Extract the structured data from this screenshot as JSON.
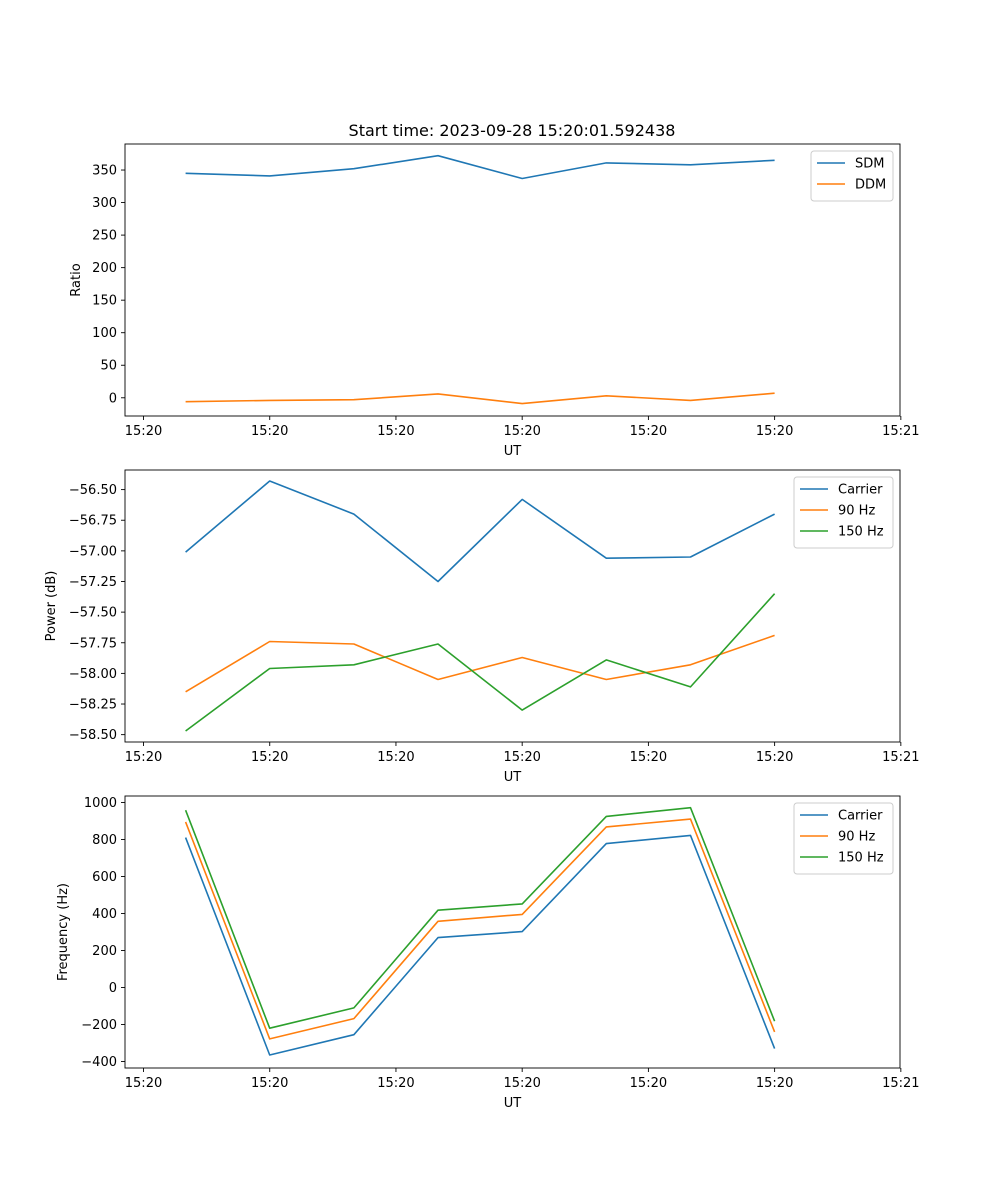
{
  "figure": {
    "title": "Start time: 2023-09-28 15:20:01.592438"
  },
  "colors": {
    "blue": "#1f77b4",
    "orange": "#ff7f0e",
    "green": "#2ca02c",
    "axes": "#000000",
    "legend_border": "#cccccc"
  },
  "chart_data": [
    {
      "type": "line",
      "title": "Start time: 2023-09-28 15:20:01.592438",
      "xlabel": "UT",
      "ylabel": "Ratio",
      "x": [
        1,
        2,
        3,
        4,
        5,
        6,
        7,
        8
      ],
      "xlim": [
        0.28,
        9.49
      ],
      "x_ticks": [
        0.5,
        2.0,
        3.5,
        5.0,
        6.5,
        8.0,
        9.5
      ],
      "x_tick_labels": [
        "15:20",
        "15:20",
        "15:20",
        "15:20",
        "15:20",
        "15:20",
        "15:21"
      ],
      "ylim": [
        -28,
        390
      ],
      "y_ticks": [
        0,
        50,
        100,
        150,
        200,
        250,
        300,
        350
      ],
      "y_tick_labels": [
        "0",
        "50",
        "100",
        "150",
        "200",
        "250",
        "300",
        "350"
      ],
      "legend_position": "top-right",
      "series": [
        {
          "name": "SDM",
          "color": "#1f77b4",
          "values": [
            345,
            341,
            352,
            372,
            337,
            361,
            358,
            365
          ]
        },
        {
          "name": "DDM",
          "color": "#ff7f0e",
          "values": [
            -6,
            -4,
            -3,
            6,
            -9,
            3,
            -4,
            7
          ]
        }
      ]
    },
    {
      "type": "line",
      "title": "",
      "xlabel": "UT",
      "ylabel": "Power (dB)",
      "x": [
        1,
        2,
        3,
        4,
        5,
        6,
        7,
        8
      ],
      "xlim": [
        0.28,
        9.49
      ],
      "x_ticks": [
        0.5,
        2.0,
        3.5,
        5.0,
        6.5,
        8.0,
        9.5
      ],
      "x_tick_labels": [
        "15:20",
        "15:20",
        "15:20",
        "15:20",
        "15:20",
        "15:20",
        "15:21"
      ],
      "ylim": [
        -58.56,
        -56.34
      ],
      "y_ticks": [
        -58.5,
        -58.25,
        -58.0,
        -57.75,
        -57.5,
        -57.25,
        -57.0,
        -56.75,
        -56.5
      ],
      "y_tick_labels": [
        "−58.50",
        "−58.25",
        "−58.00",
        "−57.75",
        "−57.50",
        "−57.25",
        "−57.00",
        "−56.75",
        "−56.50"
      ],
      "legend_position": "top-right",
      "series": [
        {
          "name": "Carrier",
          "color": "#1f77b4",
          "values": [
            -57.01,
            -56.43,
            -56.7,
            -57.25,
            -56.58,
            -57.06,
            -57.05,
            -56.7
          ]
        },
        {
          "name": "90 Hz",
          "color": "#ff7f0e",
          "values": [
            -58.15,
            -57.74,
            -57.76,
            -58.05,
            -57.87,
            -58.05,
            -57.93,
            -57.69
          ]
        },
        {
          "name": "150 Hz",
          "color": "#2ca02c",
          "values": [
            -58.47,
            -57.96,
            -57.93,
            -57.76,
            -58.3,
            -57.89,
            -58.11,
            -57.35
          ]
        }
      ]
    },
    {
      "type": "line",
      "title": "",
      "xlabel": "UT",
      "ylabel": "Frequency (Hz)",
      "x": [
        1,
        2,
        3,
        4,
        5,
        6,
        7,
        8
      ],
      "xlim": [
        0.28,
        9.49
      ],
      "x_ticks": [
        0.5,
        2.0,
        3.5,
        5.0,
        6.5,
        8.0,
        9.5
      ],
      "x_tick_labels": [
        "15:20",
        "15:20",
        "15:20",
        "15:20",
        "15:20",
        "15:20",
        "15:21"
      ],
      "ylim": [
        -435,
        1035
      ],
      "y_ticks": [
        -400,
        -200,
        0,
        200,
        400,
        600,
        800,
        1000
      ],
      "y_tick_labels": [
        "−400",
        "−200",
        "0",
        "200",
        "400",
        "600",
        "800",
        "1000"
      ],
      "legend_position": "top-right",
      "series": [
        {
          "name": "Carrier",
          "color": "#1f77b4",
          "values": [
            810,
            -365,
            -255,
            270,
            302,
            778,
            822,
            -330
          ]
        },
        {
          "name": "90 Hz",
          "color": "#ff7f0e",
          "values": [
            895,
            -278,
            -168,
            358,
            395,
            868,
            910,
            -240
          ]
        },
        {
          "name": "150 Hz",
          "color": "#2ca02c",
          "values": [
            958,
            -220,
            -110,
            418,
            452,
            925,
            972,
            -182
          ]
        }
      ]
    }
  ]
}
